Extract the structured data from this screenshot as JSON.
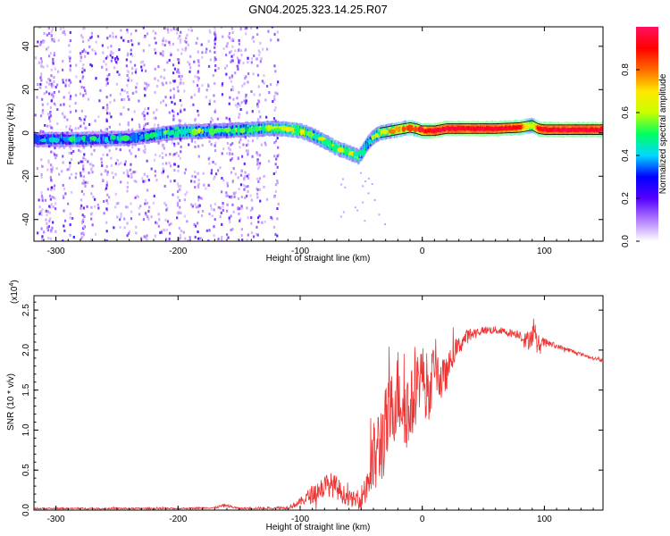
{
  "figure_title": "GN04.2025.323.14.25.R07",
  "chart_data": [
    {
      "type": "heatmap",
      "title": "GN04.2025.323.14.25.R07",
      "xlabel": "Height of straight line (km)",
      "ylabel": "Frequency (Hz)",
      "xlim": [
        -318,
        148
      ],
      "ylim": [
        -50,
        49
      ],
      "xticks": [
        -300,
        -200,
        -100,
        0,
        100
      ],
      "xtick_labels": [
        "-300",
        "-200",
        "-100",
        "0",
        "100"
      ],
      "yticks": [
        -40,
        -20,
        0,
        20,
        40
      ],
      "ytick_labels": [
        "-40",
        "-20",
        "0",
        "20",
        "40"
      ],
      "colorbar": {
        "label": "Normalized spectral amplitude",
        "range": [
          0,
          1
        ],
        "ticks": [
          0,
          0.2,
          0.4,
          0.6,
          0.8
        ],
        "tick_labels": [
          "0.0",
          "0.2",
          "0.4",
          "0.6",
          "0.8"
        ],
        "colors": [
          "#ffffff",
          "#b07cff",
          "#5500ff",
          "#0000ff",
          "#00d8ff",
          "#00ff60",
          "#c8ff00",
          "#ffe600",
          "#ff6a00",
          "#ff0000",
          "#ff1060"
        ]
      },
      "signal_track": {
        "x": [
          -318,
          -280,
          -240,
          -200,
          -160,
          -130,
          -115,
          -100,
          -90,
          -80,
          -70,
          -60,
          -52,
          -46,
          -40,
          -35,
          -30,
          -25,
          -20,
          -15,
          -10,
          -5,
          0,
          10,
          20,
          40,
          60,
          80,
          85,
          90,
          95,
          100,
          120,
          148
        ],
        "frequency": [
          -3,
          -3,
          -2.5,
          0.5,
          1,
          2,
          2,
          1,
          -1,
          -4,
          -7,
          -9,
          -11,
          -6,
          -2,
          0,
          0.5,
          1,
          1.5,
          2,
          2.5,
          2,
          1,
          1,
          2,
          2,
          2,
          2.5,
          3,
          3.5,
          2,
          1.5,
          1.5,
          1.5
        ],
        "amplitude": [
          0.3,
          0.35,
          0.35,
          0.45,
          0.45,
          0.5,
          0.55,
          0.55,
          0.5,
          0.5,
          0.55,
          0.55,
          0.5,
          0.45,
          0.5,
          0.55,
          0.6,
          0.65,
          0.7,
          0.7,
          0.75,
          0.7,
          0.85,
          0.95,
          0.95,
          0.95,
          0.95,
          0.9,
          0.7,
          0.6,
          0.9,
          0.95,
          0.95,
          0.95
        ]
      },
      "noise_region_x": [
        -318,
        -118
      ]
    },
    {
      "type": "line",
      "xlabel": "Height of straight line (km)",
      "ylabel": "SNR (10 * v/v)",
      "scale_note": "(x10",
      "scale_exponent": "4",
      "xlim": [
        -318,
        148
      ],
      "ylim": [
        0,
        2.68
      ],
      "xticks": [
        -300,
        -200,
        -100,
        0,
        100
      ],
      "xtick_labels": [
        "-300",
        "-200",
        "-100",
        "0",
        "100"
      ],
      "yticks": [
        0,
        0.5,
        1,
        1.5,
        2,
        2.5
      ],
      "ytick_labels": [
        "0.0",
        "0.5",
        "1.0",
        "1.5",
        "2.0",
        "2.5"
      ],
      "color": "#ee3333",
      "series": [
        {
          "name": "SNR",
          "x": [
            -318,
            -250,
            -200,
            -170,
            -162,
            -150,
            -110,
            -100,
            -90,
            -80,
            -75,
            -70,
            -65,
            -60,
            -55,
            -50,
            -45,
            -40,
            -35,
            -30,
            -25,
            -20,
            -15,
            -10,
            -5,
            0,
            5,
            10,
            15,
            20,
            25,
            30,
            35,
            40,
            50,
            60,
            70,
            80,
            85,
            90,
            95,
            100,
            110,
            120,
            130,
            140,
            148
          ],
          "y": [
            0.02,
            0.02,
            0.02,
            0.03,
            0.06,
            0.02,
            0.03,
            0.1,
            0.2,
            0.3,
            0.32,
            0.28,
            0.2,
            0.15,
            0.12,
            0.15,
            0.35,
            0.6,
            0.8,
            1.0,
            1.25,
            1.5,
            1.35,
            1.2,
            1.55,
            1.75,
            1.3,
            1.9,
            1.6,
            1.7,
            1.95,
            2.05,
            2.15,
            2.2,
            2.25,
            2.25,
            2.22,
            2.2,
            2.1,
            2.2,
            2.05,
            2.1,
            2.05,
            2.0,
            1.95,
            1.9,
            1.87
          ],
          "noise_amp": [
            0.01,
            0.01,
            0.01,
            0.01,
            0.02,
            0.01,
            0.02,
            0.05,
            0.12,
            0.15,
            0.15,
            0.15,
            0.12,
            0.1,
            0.1,
            0.15,
            0.3,
            0.5,
            0.55,
            0.55,
            0.5,
            0.55,
            0.55,
            0.5,
            0.45,
            0.35,
            0.4,
            0.3,
            0.3,
            0.2,
            0.15,
            0.12,
            0.1,
            0.08,
            0.05,
            0.05,
            0.05,
            0.06,
            0.12,
            0.15,
            0.15,
            0.05,
            0.03,
            0.03,
            0.02,
            0.02,
            0.02
          ]
        }
      ]
    }
  ]
}
